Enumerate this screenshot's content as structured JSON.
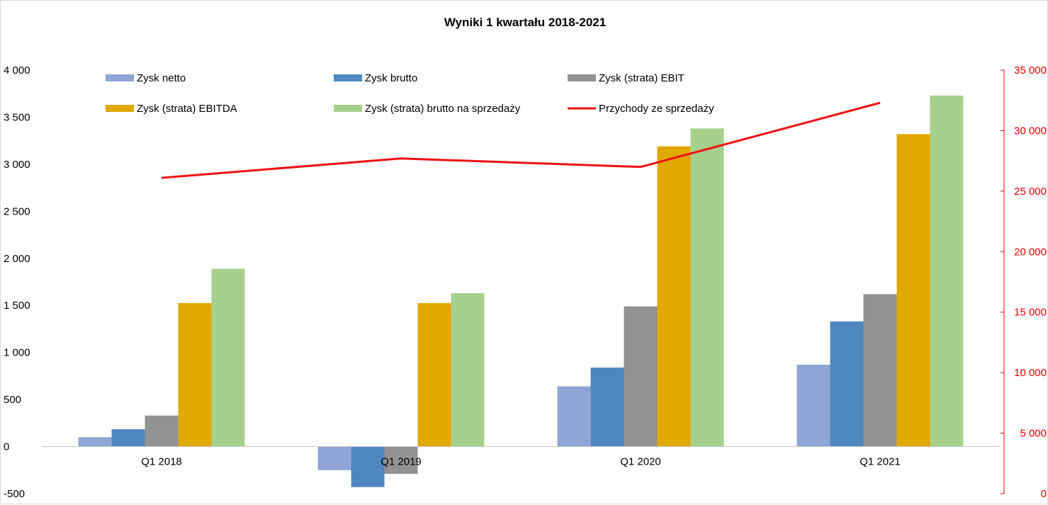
{
  "chart_data": {
    "type": "bar",
    "title": "Wyniki 1 kwartału 2018-2021",
    "categories": [
      "Q1 2018",
      "Q1 2019",
      "Q1 2020",
      "Q1 2021"
    ],
    "series": [
      {
        "name": "Zysk netto",
        "kind": "bar",
        "axis": "left",
        "color": "#8fa5d6",
        "values": [
          100,
          -250,
          640,
          870
        ]
      },
      {
        "name": "Zysk brutto",
        "kind": "bar",
        "axis": "left",
        "color": "#4f88bf",
        "values": [
          185,
          -430,
          840,
          1330
        ]
      },
      {
        "name": "Zysk (strata) EBIT",
        "kind": "bar",
        "axis": "left",
        "color": "#929292",
        "values": [
          330,
          -290,
          1490,
          1620
        ]
      },
      {
        "name": "Zysk (strata) EBITDA",
        "kind": "bar",
        "axis": "left",
        "color": "#e1a800",
        "values": [
          1525,
          1525,
          3190,
          3320
        ]
      },
      {
        "name": "Zysk (strata) brutto na sprzedaży",
        "kind": "bar",
        "axis": "left",
        "color": "#a7d08c",
        "values": [
          1890,
          1630,
          3380,
          3730
        ]
      },
      {
        "name": "Przychody ze sprzedaży",
        "kind": "line",
        "axis": "right",
        "color": "#ee1111",
        "values": [
          26100,
          27700,
          27000,
          32300
        ]
      }
    ],
    "y_left": {
      "ylim": [
        -500,
        4000
      ],
      "ticks": [
        -500,
        0,
        500,
        1000,
        1500,
        2000,
        2500,
        3000,
        3500,
        4000
      ],
      "tick_labels": [
        "-500",
        "0",
        "500",
        "1 000",
        "1 500",
        "2 000",
        "2 500",
        "3 000",
        "3 500",
        "4 000"
      ]
    },
    "y_right": {
      "ylim": [
        0,
        35000
      ],
      "ticks": [
        0,
        5000,
        10000,
        15000,
        20000,
        25000,
        30000,
        35000
      ],
      "tick_labels": [
        "0",
        "5 000",
        "10 000",
        "15 000",
        "20 000",
        "25 000",
        "30 000",
        "35 000"
      ],
      "color": "#e00000"
    },
    "grid": false,
    "legend": "top"
  }
}
